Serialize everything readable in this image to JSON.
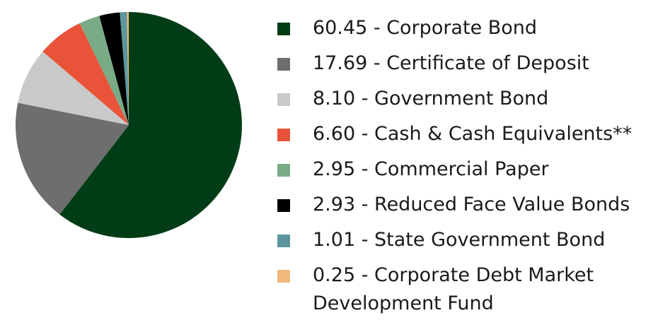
{
  "chart_data": {
    "type": "pie",
    "categories": [
      "60.45 - Corporate Bond",
      "17.69 - Certificate of Deposit",
      "8.10 - Government Bond",
      "6.60 - Cash & Cash Equivalents**",
      "2.95 - Commercial Paper",
      "2.93 - Reduced Face Value Bonds",
      "1.01 - State Government Bond",
      "0.25 - Corporate Debt Market Development Fund"
    ],
    "values": [
      60.45,
      17.69,
      8.1,
      6.6,
      2.95,
      2.93,
      1.01,
      0.25
    ],
    "colors": [
      "#003d17",
      "#6e6e6e",
      "#c9c9c9",
      "#e8533a",
      "#7aab87",
      "#000000",
      "#5b969c",
      "#f0b87a"
    ]
  }
}
